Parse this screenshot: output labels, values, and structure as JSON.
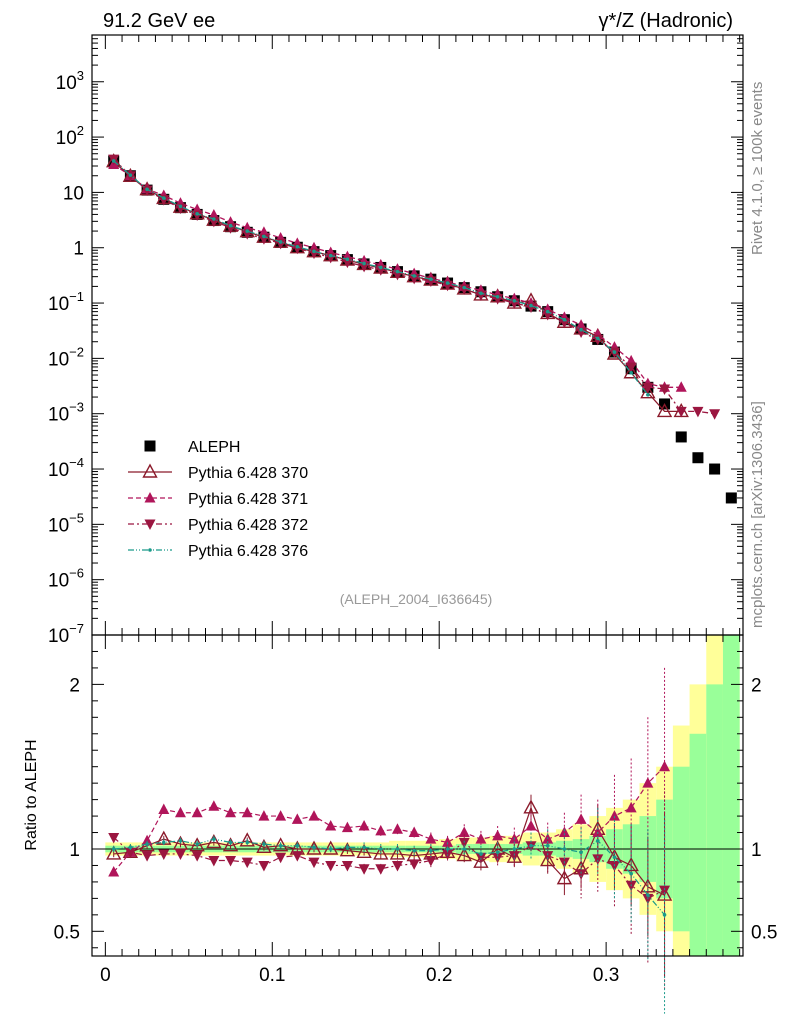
{
  "header": {
    "left": "91.2 GeV ee",
    "right": "γ*/Z (Hadronic)"
  },
  "side_labels": {
    "rivet": "Rivet 4.1.0, ≥ 100k events",
    "mcplots": "mcplots.cern.ch [arXiv:1306.3436]"
  },
  "analysis_label": "(ALEPH_2004_I636645)",
  "colors": {
    "data": "#000000",
    "p370": "#8b1a2b",
    "p371": "#b0155a",
    "p372": "#9b1640",
    "p376": "#1a9a8a",
    "band_yellow": "#ffff99",
    "band_green": "#99ff99"
  },
  "chart_data": [
    {
      "type": "scatter",
      "title": "",
      "xlabel": "",
      "ylabel": "",
      "yscale": "log",
      "xlim": [
        -0.008,
        0.382
      ],
      "ylim": [
        1e-07,
        7000
      ],
      "y_ticks": [
        {
          "v": 1000,
          "base": "10",
          "exp": "3"
        },
        {
          "v": 100,
          "base": "10",
          "exp": "2"
        },
        {
          "v": 10,
          "base": "10",
          "exp": ""
        },
        {
          "v": 1,
          "base": "1",
          "exp": ""
        },
        {
          "v": 0.1,
          "base": "10",
          "exp": "−1"
        },
        {
          "v": 0.01,
          "base": "10",
          "exp": "−2"
        },
        {
          "v": 0.001,
          "base": "10",
          "exp": "−3"
        },
        {
          "v": 0.0001,
          "base": "10",
          "exp": "−4"
        },
        {
          "v": 1e-05,
          "base": "10",
          "exp": "−5"
        },
        {
          "v": 1e-06,
          "base": "10",
          "exp": "−6"
        },
        {
          "v": 1e-07,
          "base": "10",
          "exp": "−7"
        }
      ],
      "x": [
        0.005,
        0.015,
        0.025,
        0.035,
        0.045,
        0.055,
        0.065,
        0.075,
        0.085,
        0.095,
        0.105,
        0.115,
        0.125,
        0.135,
        0.145,
        0.155,
        0.165,
        0.175,
        0.185,
        0.195,
        0.205,
        0.215,
        0.225,
        0.235,
        0.245,
        0.255,
        0.265,
        0.275,
        0.285,
        0.295,
        0.305,
        0.315,
        0.325,
        0.335,
        0.345,
        0.355,
        0.365,
        0.375
      ],
      "series": [
        {
          "name": "ALEPH",
          "key": "data",
          "values": [
            37,
            20,
            11,
            7.5,
            5.3,
            4.0,
            3.1,
            2.4,
            1.9,
            1.55,
            1.25,
            1.02,
            0.85,
            0.72,
            0.61,
            0.51,
            0.44,
            0.37,
            0.31,
            0.27,
            0.23,
            0.19,
            0.16,
            0.13,
            0.11,
            0.088,
            0.07,
            0.05,
            0.034,
            0.022,
            0.013,
            0.0065,
            0.003,
            0.0015,
            0.00038,
            0.00016,
            0.0001,
            3e-05
          ]
        },
        {
          "name": "Pythia 6.428 370",
          "key": "p370",
          "values": [
            36,
            19.5,
            11.2,
            7.8,
            5.4,
            4.1,
            3.15,
            2.45,
            1.95,
            1.55,
            1.26,
            1.0,
            0.85,
            0.72,
            0.6,
            0.5,
            0.43,
            0.36,
            0.3,
            0.26,
            0.22,
            0.18,
            0.14,
            0.13,
            0.1,
            0.11,
            0.065,
            0.045,
            0.034,
            0.025,
            0.012,
            0.0055,
            0.0024,
            0.0011,
            0.0011
          ]
        },
        {
          "name": "Pythia 6.428 371",
          "key": "p371",
          "values": [
            32,
            20,
            11.5,
            8.8,
            6.4,
            4.9,
            3.9,
            2.9,
            2.3,
            1.9,
            1.5,
            1.2,
            1.0,
            0.82,
            0.69,
            0.58,
            0.49,
            0.41,
            0.34,
            0.28,
            0.24,
            0.2,
            0.17,
            0.14,
            0.12,
            0.1,
            0.077,
            0.055,
            0.04,
            0.027,
            0.016,
            0.009,
            0.0035,
            0.003,
            0.003
          ]
        },
        {
          "name": "Pythia 6.428 372",
          "key": "p372",
          "values": [
            40,
            20,
            11,
            7.4,
            5.2,
            3.9,
            3.0,
            2.3,
            1.8,
            1.45,
            1.2,
            0.98,
            0.8,
            0.67,
            0.55,
            0.46,
            0.4,
            0.33,
            0.28,
            0.25,
            0.21,
            0.18,
            0.14,
            0.12,
            0.1,
            0.085,
            0.062,
            0.045,
            0.03,
            0.022,
            0.013,
            0.007,
            0.003,
            0.0028,
            0.0011,
            0.0011,
            0.001
          ]
        },
        {
          "name": "Pythia 6.428 376",
          "key": "p376",
          "values": [
            37,
            20.5,
            11.4,
            7.9,
            5.6,
            4.1,
            3.3,
            2.5,
            2.0,
            1.6,
            1.27,
            1.04,
            0.86,
            0.72,
            0.62,
            0.52,
            0.44,
            0.37,
            0.31,
            0.27,
            0.23,
            0.19,
            0.15,
            0.13,
            0.11,
            0.09,
            0.07,
            0.05,
            0.033,
            0.023,
            0.013,
            0.0055,
            0.0022
          ]
        }
      ]
    },
    {
      "type": "scatter",
      "title": "",
      "xlabel": "",
      "ylabel": "Ratio to ALEPH",
      "xlim": [
        -0.008,
        0.382
      ],
      "ylim": [
        0.35,
        2.3
      ],
      "x_ticks": [
        {
          "v": 0,
          "label": "0"
        },
        {
          "v": 0.1,
          "label": "0.1"
        },
        {
          "v": 0.2,
          "label": "0.2"
        },
        {
          "v": 0.3,
          "label": "0.3"
        }
      ],
      "y_ticks": [
        {
          "v": 0.5,
          "label": "0.5"
        },
        {
          "v": 1,
          "label": "1"
        },
        {
          "v": 2,
          "label": "2"
        }
      ],
      "x": [
        0.005,
        0.015,
        0.025,
        0.035,
        0.045,
        0.055,
        0.065,
        0.075,
        0.085,
        0.095,
        0.105,
        0.115,
        0.125,
        0.135,
        0.145,
        0.155,
        0.165,
        0.175,
        0.185,
        0.195,
        0.205,
        0.215,
        0.225,
        0.235,
        0.245,
        0.255,
        0.265,
        0.275,
        0.285,
        0.295,
        0.305,
        0.315,
        0.325,
        0.335
      ],
      "bands": {
        "edges": [
          0,
          0.01,
          0.02,
          0.03,
          0.04,
          0.05,
          0.06,
          0.07,
          0.08,
          0.09,
          0.1,
          0.11,
          0.12,
          0.13,
          0.14,
          0.15,
          0.16,
          0.17,
          0.18,
          0.19,
          0.2,
          0.21,
          0.22,
          0.23,
          0.24,
          0.25,
          0.26,
          0.27,
          0.28,
          0.29,
          0.3,
          0.31,
          0.32,
          0.33,
          0.34,
          0.35,
          0.36,
          0.37,
          0.38
        ],
        "stat": [
          0.02,
          0.02,
          0.02,
          0.02,
          0.02,
          0.02,
          0.02,
          0.02,
          0.02,
          0.02,
          0.02,
          0.02,
          0.02,
          0.02,
          0.02,
          0.02,
          0.02,
          0.02,
          0.02,
          0.02,
          0.02,
          0.03,
          0.03,
          0.03,
          0.03,
          0.04,
          0.04,
          0.05,
          0.06,
          0.08,
          0.12,
          0.15,
          0.2,
          0.3,
          0.5,
          0.7,
          1.0,
          1.5
        ],
        "total": [
          0.04,
          0.04,
          0.04,
          0.04,
          0.04,
          0.04,
          0.04,
          0.04,
          0.04,
          0.04,
          0.04,
          0.04,
          0.04,
          0.04,
          0.04,
          0.04,
          0.04,
          0.05,
          0.05,
          0.05,
          0.06,
          0.07,
          0.07,
          0.08,
          0.08,
          0.1,
          0.1,
          0.12,
          0.15,
          0.2,
          0.25,
          0.3,
          0.4,
          0.5,
          0.75,
          1.0,
          1.5,
          2.0
        ]
      },
      "series": [
        {
          "name": "Pythia 6.428 370",
          "key": "p370",
          "values": [
            0.97,
            0.98,
            1.02,
            1.06,
            1.03,
            1.02,
            1.04,
            1.02,
            1.05,
            1.01,
            1.02,
            1.0,
            1.0,
            1.0,
            0.99,
            0.98,
            0.97,
            0.97,
            0.96,
            0.97,
            0.98,
            0.96,
            0.92,
            1.0,
            0.95,
            1.25,
            0.93,
            0.82,
            0.88,
            1.12,
            0.95,
            0.9,
            0.77,
            0.72
          ],
          "errs": [
            0.02,
            0.02,
            0.02,
            0.02,
            0.02,
            0.02,
            0.02,
            0.02,
            0.02,
            0.02,
            0.02,
            0.02,
            0.02,
            0.02,
            0.02,
            0.02,
            0.03,
            0.03,
            0.03,
            0.03,
            0.04,
            0.04,
            0.05,
            0.05,
            0.06,
            0.08,
            0.08,
            0.1,
            0.12,
            0.15,
            0.2,
            0.25,
            0.3,
            0.5
          ]
        },
        {
          "name": "Pythia 6.428 371",
          "key": "p371",
          "values": [
            0.86,
            0.98,
            1.05,
            1.24,
            1.22,
            1.22,
            1.26,
            1.22,
            1.22,
            1.2,
            1.2,
            1.18,
            1.2,
            1.14,
            1.13,
            1.14,
            1.11,
            1.12,
            1.1,
            1.06,
            1.04,
            1.1,
            1.06,
            1.08,
            1.06,
            1.14,
            1.06,
            1.1,
            1.18,
            1.1,
            1.2,
            1.25,
            1.4,
            1.5
          ],
          "errs": [
            0.02,
            0.02,
            0.02,
            0.02,
            0.02,
            0.02,
            0.02,
            0.02,
            0.02,
            0.02,
            0.02,
            0.02,
            0.02,
            0.02,
            0.02,
            0.03,
            0.03,
            0.03,
            0.03,
            0.04,
            0.04,
            0.05,
            0.05,
            0.06,
            0.07,
            0.08,
            0.1,
            0.12,
            0.15,
            0.2,
            0.25,
            0.3,
            0.4,
            0.6
          ]
        },
        {
          "name": "Pythia 6.428 372",
          "key": "p372",
          "values": [
            1.07,
            0.98,
            0.96,
            0.97,
            0.97,
            0.96,
            0.93,
            0.93,
            0.92,
            0.9,
            0.95,
            0.96,
            0.92,
            0.9,
            0.9,
            0.88,
            0.88,
            0.9,
            0.91,
            0.93,
            0.97,
            1.04,
            0.95,
            0.95,
            0.96,
            1.02,
            0.96,
            0.92,
            0.85,
            0.94,
            0.9,
            0.78,
            0.7,
            0.75
          ],
          "errs": [
            0.02,
            0.02,
            0.02,
            0.02,
            0.02,
            0.02,
            0.02,
            0.02,
            0.02,
            0.02,
            0.02,
            0.02,
            0.02,
            0.02,
            0.02,
            0.03,
            0.03,
            0.03,
            0.03,
            0.04,
            0.04,
            0.05,
            0.05,
            0.06,
            0.07,
            0.08,
            0.1,
            0.12,
            0.15,
            0.2,
            0.25,
            0.3,
            0.4,
            0.6
          ]
        },
        {
          "name": "Pythia 6.428 376",
          "key": "p376",
          "values": [
            1.0,
            1.01,
            1.03,
            1.04,
            1.05,
            1.03,
            1.06,
            1.04,
            1.04,
            1.03,
            1.02,
            1.02,
            1.01,
            1.0,
            1.01,
            1.01,
            1.0,
            1.0,
            0.99,
            0.99,
            1.0,
            1.0,
            0.97,
            0.98,
            1.0,
            1.02,
            1.02,
            1.0,
            0.98,
            1.05,
            0.95,
            0.85,
            0.72,
            0.6
          ],
          "errs": [
            0.02,
            0.02,
            0.02,
            0.02,
            0.02,
            0.02,
            0.02,
            0.02,
            0.02,
            0.02,
            0.02,
            0.02,
            0.02,
            0.02,
            0.02,
            0.03,
            0.03,
            0.03,
            0.03,
            0.04,
            0.04,
            0.05,
            0.05,
            0.06,
            0.07,
            0.08,
            0.1,
            0.12,
            0.15,
            0.2,
            0.25,
            0.3,
            0.4,
            0.6
          ]
        }
      ]
    }
  ],
  "legend": {
    "placement": "bottom-left",
    "entries": [
      {
        "label": "ALEPH",
        "key": "data"
      },
      {
        "label": "Pythia 6.428 370",
        "key": "p370"
      },
      {
        "label": "Pythia 6.428 371",
        "key": "p371"
      },
      {
        "label": "Pythia 6.428 372",
        "key": "p372"
      },
      {
        "label": "Pythia 6.428 376",
        "key": "p376"
      }
    ]
  }
}
